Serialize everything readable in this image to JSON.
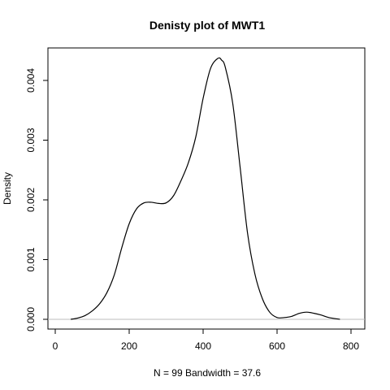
{
  "chart_data": {
    "type": "line",
    "title": "Denisty plot of  MWT1",
    "xlabel": "N = 99   Bandwidth = 37.6",
    "ylabel": "Density",
    "xlim": [
      0,
      800
    ],
    "ylim": [
      0,
      0.004
    ],
    "x_ticks": [
      0,
      200,
      400,
      600,
      800
    ],
    "x_tick_labels": [
      "0",
      "200",
      "400",
      "600",
      "800"
    ],
    "y_ticks": [
      0,
      0.001,
      0.002,
      0.003,
      0.004
    ],
    "y_tick_labels": [
      "0.000",
      "0.001",
      "0.002",
      "0.003",
      "0.004"
    ],
    "grid": false,
    "baseline": 0,
    "baseline_color": "#bebebe",
    "line_color": "#000000",
    "series": [
      {
        "x": [
          42,
          60,
          80,
          100,
          120,
          140,
          160,
          180,
          200,
          220,
          240,
          260,
          280,
          300,
          320,
          340,
          360,
          380,
          400,
          420,
          440,
          450,
          460,
          480,
          500,
          520,
          540,
          560,
          580,
          600,
          620,
          640,
          660,
          680,
          700,
          720,
          740,
          770
        ],
        "y": [
          0,
          2e-05,
          6e-05,
          0.00014,
          0.00026,
          0.00045,
          0.00075,
          0.0012,
          0.0016,
          0.00185,
          0.00195,
          0.00196,
          0.00194,
          0.00195,
          0.00207,
          0.00232,
          0.00262,
          0.00305,
          0.0037,
          0.0042,
          0.00437,
          0.00434,
          0.00422,
          0.00362,
          0.00255,
          0.00145,
          0.00076,
          0.00035,
          0.00012,
          3e-05,
          3e-05,
          5e-05,
          0.0001,
          0.00012,
          0.0001,
          7e-05,
          3e-05,
          0
        ]
      }
    ]
  }
}
